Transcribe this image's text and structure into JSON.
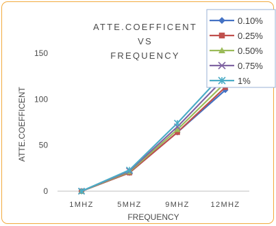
{
  "chart_data": {
    "type": "line",
    "title_lines": [
      "ATTE.COEFFICENT",
      "VS",
      "FREQUENCY"
    ],
    "xlabel": "FREQUENCY",
    "ylabel": "ATTE.COEFFICENT",
    "categories": [
      "1MHZ",
      "5MHZ",
      "9MHZ",
      "12MHZ"
    ],
    "ylim": [
      0,
      150
    ],
    "yticks": [
      0,
      50,
      100,
      150
    ],
    "grid": false,
    "legend_position": "top-right",
    "series": [
      {
        "name": "0.10%",
        "color": "#4472c4",
        "marker": "diamond",
        "values": [
          0,
          20,
          64,
          110
        ]
      },
      {
        "name": "0.25%",
        "color": "#c0504d",
        "marker": "square",
        "values": [
          0,
          20,
          64,
          113
        ]
      },
      {
        "name": "0.50%",
        "color": "#9bbb59",
        "marker": "triangle",
        "values": [
          0,
          21,
          67,
          118
        ]
      },
      {
        "name": "0.75%",
        "color": "#8064a2",
        "marker": "x",
        "values": [
          0,
          22,
          70,
          124
        ]
      },
      {
        "name": "1%",
        "color": "#4bacc6",
        "marker": "star",
        "values": [
          0,
          23,
          74,
          130
        ]
      }
    ]
  }
}
